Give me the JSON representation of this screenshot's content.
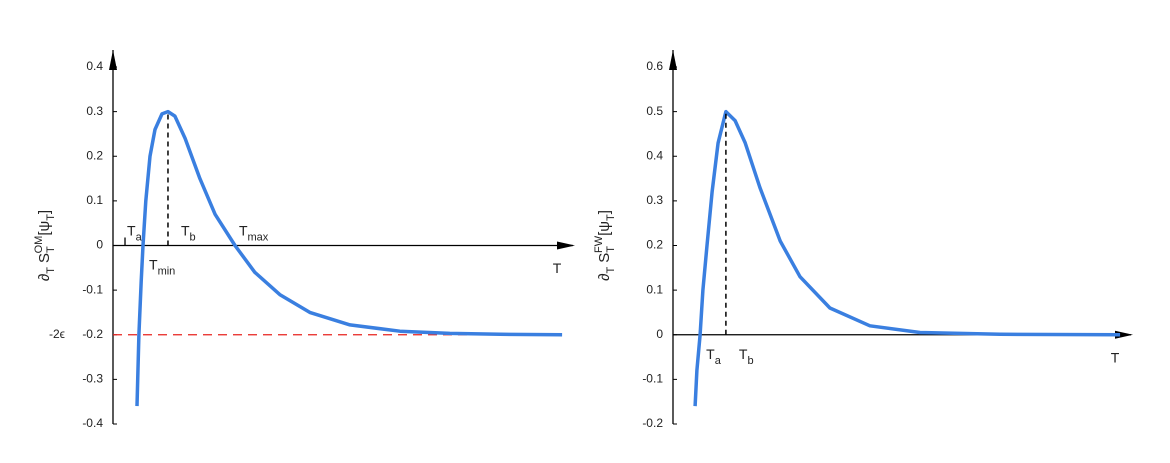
{
  "chart_data": [
    {
      "type": "line",
      "ylabel": [
        "∂",
        "T",
        "S",
        "T",
        "OM",
        "[ψ",
        "T",
        "]"
      ],
      "xlabel": "T",
      "x": [
        0.052,
        0.056,
        0.061,
        0.065,
        0.071,
        0.08,
        0.091,
        0.106,
        0.119,
        0.134,
        0.156,
        0.188,
        0.221,
        0.264,
        0.307,
        0.361,
        0.426,
        0.513,
        0.621,
        0.729,
        0.838,
        0.972
      ],
      "series": [
        {
          "color": "#3a7fe0",
          "values": [
            -0.36,
            -0.2,
            -0.08,
            0,
            0.1,
            0.2,
            0.26,
            0.295,
            0.3,
            0.29,
            0.24,
            0.15,
            0.07,
            0,
            -0.06,
            -0.11,
            -0.15,
            -0.178,
            -0.192,
            -0.197,
            -0.199,
            -0.2
          ]
        }
      ],
      "xlim": [
        0,
        1
      ],
      "ylim": [
        -0.4,
        0.4
      ],
      "yticks": [
        -0.4,
        -0.3,
        -0.2,
        -0.1,
        0,
        0.1,
        0.2,
        0.3,
        0.4
      ],
      "reference_line": {
        "y": -0.2,
        "label": "-2ϵ",
        "color": "#e8231f"
      },
      "markers": [
        {
          "label": "T",
          "sub": "a",
          "x": 0.026,
          "style": "tick",
          "place": "above"
        },
        {
          "label": "T",
          "sub": "min",
          "x": 0.065,
          "style": "none",
          "place": "below"
        },
        {
          "label": "T",
          "sub": "b",
          "x": 0.119,
          "style": "dashed",
          "to": 0.3,
          "place": "above"
        },
        {
          "label": "T",
          "sub": "max",
          "x": 0.264,
          "style": "none",
          "place": "above"
        }
      ]
    },
    {
      "type": "line",
      "ylabel": [
        "∂",
        "T",
        "S",
        "T",
        "FW",
        "[ψ",
        "T",
        "]"
      ],
      "xlabel": "T",
      "x": [
        0.048,
        0.052,
        0.059,
        0.065,
        0.074,
        0.085,
        0.098,
        0.115,
        0.135,
        0.157,
        0.189,
        0.233,
        0.276,
        0.341,
        0.428,
        0.537,
        0.711,
        0.972
      ],
      "series": [
        {
          "color": "#3a7fe0",
          "values": [
            -0.16,
            -0.08,
            0,
            0.1,
            0.2,
            0.32,
            0.43,
            0.5,
            0.48,
            0.43,
            0.33,
            0.21,
            0.13,
            0.06,
            0.02,
            0.005,
            0.001,
            0
          ]
        }
      ],
      "xlim": [
        0,
        1
      ],
      "ylim": [
        -0.2,
        0.6
      ],
      "yticks": [
        -0.2,
        -0.1,
        0,
        0.1,
        0.2,
        0.3,
        0.4,
        0.5,
        0.6
      ],
      "markers": [
        {
          "label": "T",
          "sub": "a",
          "x": 0.059,
          "style": "none",
          "place": "below"
        },
        {
          "label": "T",
          "sub": "b",
          "x": 0.115,
          "style": "dashed",
          "to": 0.5,
          "place": "below"
        }
      ]
    }
  ]
}
